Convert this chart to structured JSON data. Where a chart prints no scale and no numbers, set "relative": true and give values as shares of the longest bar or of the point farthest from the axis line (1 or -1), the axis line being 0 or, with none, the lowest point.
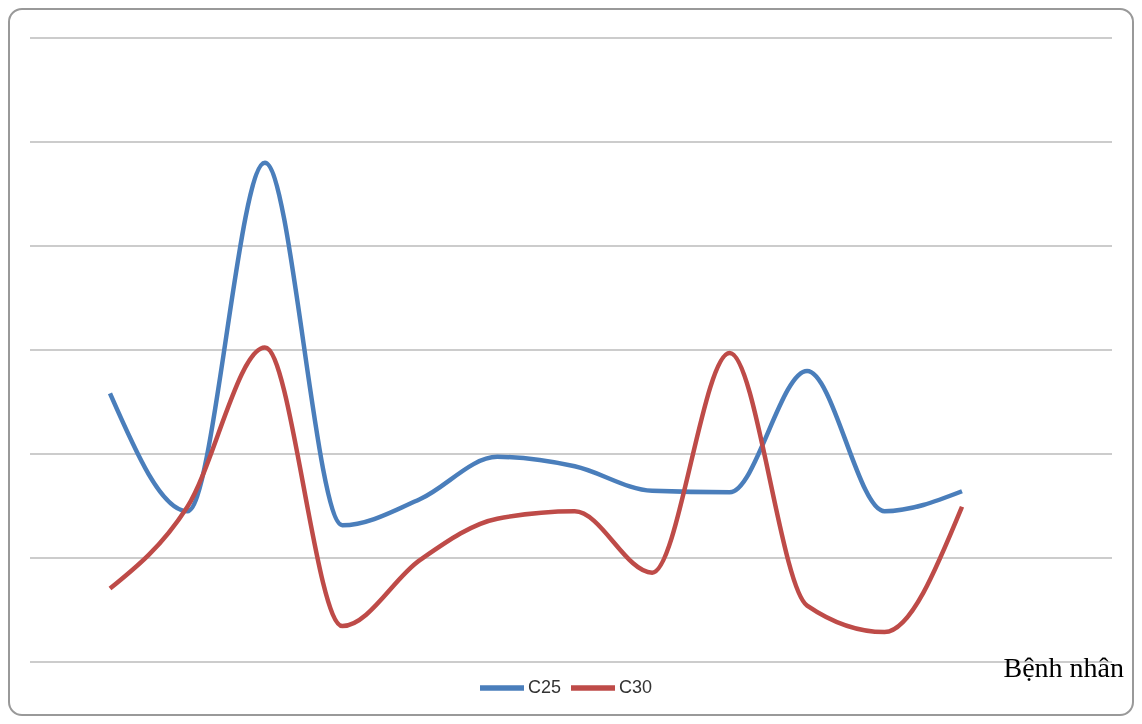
{
  "chart_data": {
    "type": "line",
    "relative": true,
    "xlabel": "Bệnh nhân",
    "categories": [
      null,
      null,
      null,
      null,
      null,
      null,
      null,
      null,
      null,
      null,
      null,
      null
    ],
    "grid": "y",
    "legend": "bottom",
    "marker": "none",
    "line_style": "solid",
    "series": [
      {
        "name": "C25",
        "color": "#4a7ebb",
        "values": [
          0.538,
          0.302,
          1,
          0.274,
          0.326,
          0.411,
          0.392,
          0.343,
          0.34,
          0.583,
          0.302,
          0.342
        ]
      },
      {
        "name": "C30",
        "color": "#be4b48",
        "values": [
          0.147,
          0.311,
          0.63,
          0.072,
          0.204,
          0.287,
          0.302,
          0.179,
          0.619,
          0.113,
          0.06,
          0.311
        ]
      }
    ]
  }
}
